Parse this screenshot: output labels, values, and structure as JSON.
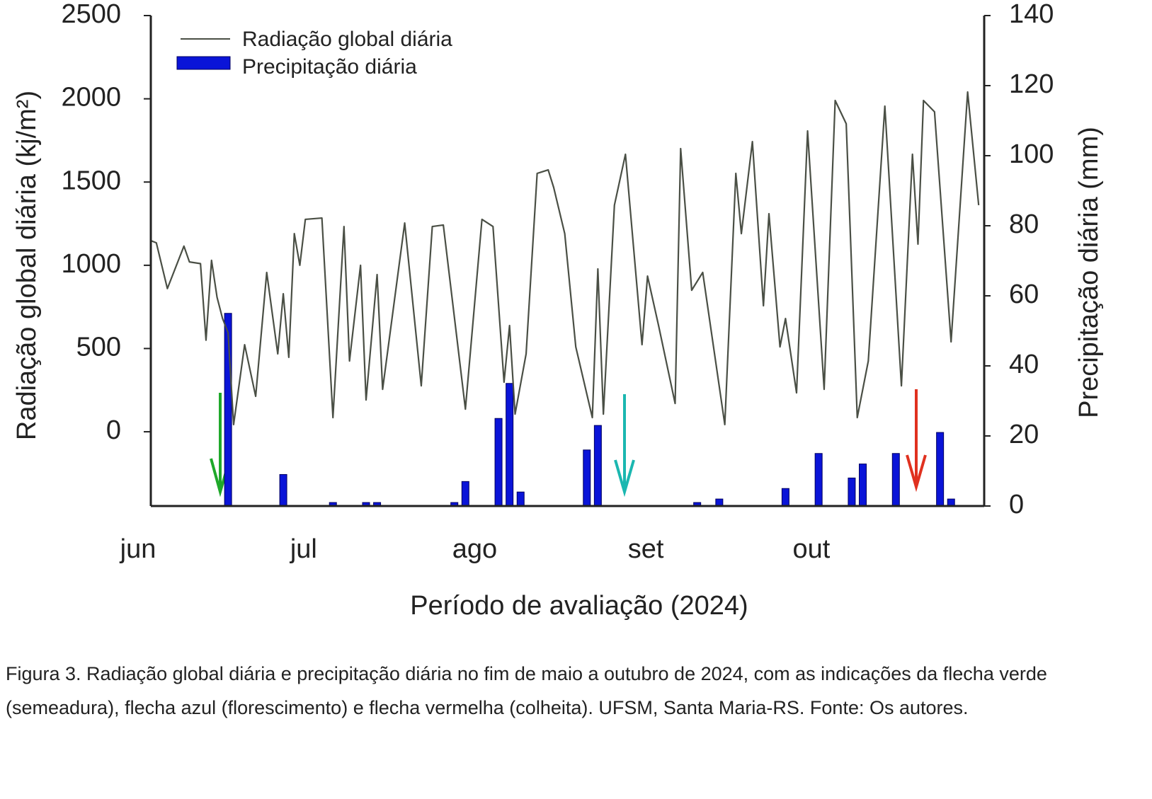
{
  "chart_data": {
    "type": "line-bar",
    "ylabel": "Radiação global diária (kj/m²)",
    "y2label": "Precipitação diária (mm)",
    "xlabel": "Período de avaliação (2024)",
    "caption": "Figura 3. Radiação global diária e precipitação diária no fim de maio a outubro de 2024, com as indicações da flecha verde (semeadura), flecha azul (florescimento) e flecha vermelha (colheita). UFSM, Santa Maria-RS. Fonte: Os autores.",
    "xlim": [
      0,
      151
    ],
    "xticks": [
      {
        "value": 0,
        "label": "jun"
      },
      {
        "value": 30,
        "label": "jul"
      },
      {
        "value": 61,
        "label": "ago"
      },
      {
        "value": 92,
        "label": "set"
      },
      {
        "value": 122,
        "label": "out"
      }
    ],
    "ylim": [
      -446,
      2500
    ],
    "yticks": [
      0,
      500,
      1000,
      1500,
      2000,
      2500
    ],
    "y2lim": [
      0,
      140
    ],
    "y2ticks": [
      0,
      20,
      40,
      60,
      80,
      100,
      120,
      140
    ],
    "series": [
      {
        "name": "Radiação global diária",
        "type": "line",
        "color": "#4a4f45",
        "x": [
          0,
          1,
          3,
          6,
          7,
          9,
          10,
          11,
          12,
          13,
          14,
          15,
          17,
          19,
          21,
          23,
          24,
          25,
          26,
          27,
          28,
          31,
          33,
          35,
          36,
          38,
          39,
          41,
          42,
          46,
          49,
          51,
          53,
          57,
          60,
          62,
          64,
          65,
          66,
          68,
          70,
          72,
          73,
          75,
          77,
          80,
          81,
          82,
          84,
          86,
          89,
          90,
          92,
          95,
          96,
          98,
          100,
          104,
          106,
          107,
          109,
          111,
          112,
          114,
          115,
          117,
          119,
          122,
          124,
          126,
          128,
          130,
          133,
          136,
          138,
          139,
          140,
          142,
          145,
          148,
          150
        ],
        "values": [
          1148,
          1135,
          860,
          1115,
          1020,
          1010,
          550,
          1030,
          808,
          680,
          595,
          43,
          523,
          213,
          957,
          468,
          829,
          447,
          1190,
          1000,
          1276,
          1284,
          85,
          1233,
          425,
          1000,
          191,
          944,
          255,
          1254,
          276,
          1233,
          1242,
          136,
          1276,
          1233,
          298,
          638,
          106,
          468,
          1552,
          1573,
          1467,
          1190,
          510,
          85,
          978,
          106,
          1361,
          1667,
          523,
          935,
          638,
          170,
          1701,
          850,
          957,
          43,
          1552,
          1190,
          1743,
          757,
          1310,
          510,
          680,
          234,
          1807,
          255,
          1990,
          1850,
          85,
          425,
          1956,
          276,
          1667,
          1127,
          1990,
          1922,
          540,
          2041,
          1361
        ]
      },
      {
        "name": "Precipitação diária",
        "type": "bar",
        "axis": "y2",
        "color": "#0a14d8",
        "x": [
          14,
          24,
          33,
          39,
          41,
          55,
          57,
          63,
          65,
          67,
          79,
          81,
          99,
          103,
          115,
          121,
          127,
          129,
          135,
          143,
          145
        ],
        "values": [
          55,
          9,
          1,
          1,
          1,
          1,
          7,
          25,
          35,
          4,
          16,
          23,
          1,
          2,
          5,
          15,
          8,
          12,
          15,
          21,
          2
        ]
      }
    ]
  }
}
